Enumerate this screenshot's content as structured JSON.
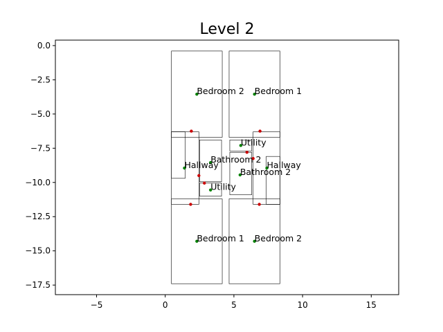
{
  "chart_data": {
    "type": "scatter",
    "title": "Level 2",
    "xlabel": "",
    "ylabel": "",
    "xlim": [
      -8,
      17
    ],
    "ylim": [
      -18.2,
      0.4
    ],
    "xticks": [
      -5,
      0,
      5,
      10,
      15
    ],
    "xtick_labels": [
      "−5",
      "0",
      "5",
      "10",
      "15"
    ],
    "yticks": [
      0,
      -2.5,
      -5,
      -7.5,
      -10,
      -12.5,
      -15,
      -17.5
    ],
    "ytick_labels": [
      "0.0",
      "−2.5",
      "−5.0",
      "−7.5",
      "−10.0",
      "−12.5",
      "−15.0",
      "−17.5"
    ],
    "grid": false,
    "colors": {
      "room_point": "#008000",
      "door_point": "#cc0000",
      "outline": "#000000"
    },
    "rooms": [
      {
        "x0": 0.45,
        "y0": -0.4,
        "x1": 4.15,
        "y1": -6.7
      },
      {
        "x0": 4.65,
        "y0": -0.4,
        "x1": 8.35,
        "y1": -6.7
      },
      {
        "x0": 0.45,
        "y0": -6.3,
        "x1": 2.45,
        "y1": -11.6
      },
      {
        "x0": 0.45,
        "y0": -6.3,
        "x1": 1.45,
        "y1": -9.7
      },
      {
        "x0": 2.5,
        "y0": -6.9,
        "x1": 4.1,
        "y1": -9.95
      },
      {
        "x0": 2.5,
        "y0": -10.05,
        "x1": 4.1,
        "y1": -11.0
      },
      {
        "x0": 4.7,
        "y0": -6.9,
        "x1": 6.3,
        "y1": -7.7
      },
      {
        "x0": 4.7,
        "y0": -7.8,
        "x1": 6.3,
        "y1": -10.9
      },
      {
        "x0": 6.4,
        "y0": -6.3,
        "x1": 8.35,
        "y1": -11.6
      },
      {
        "x0": 7.35,
        "y0": -8.1,
        "x1": 8.35,
        "y1": -11.6
      },
      {
        "x0": 0.45,
        "y0": -11.2,
        "x1": 4.15,
        "y1": -17.4
      },
      {
        "x0": 4.65,
        "y0": -11.2,
        "x1": 8.35,
        "y1": -17.4
      }
    ],
    "labels": [
      {
        "text": "Bedroom 2",
        "x": 2.3,
        "y": -3.55
      },
      {
        "text": "Bedroom 1",
        "x": 6.5,
        "y": -3.55
      },
      {
        "text": "Utility",
        "x": 5.5,
        "y": -7.3
      },
      {
        "text": "Bathroom 2",
        "x": 3.3,
        "y": -8.55
      },
      {
        "text": "Hallway",
        "x": 1.4,
        "y": -8.95
      },
      {
        "text": "Hallway",
        "x": 7.4,
        "y": -8.95
      },
      {
        "text": "Bathroom 2",
        "x": 5.45,
        "y": -9.45
      },
      {
        "text": "Utility",
        "x": 3.3,
        "y": -10.55
      },
      {
        "text": "Bedroom 1",
        "x": 2.3,
        "y": -14.3
      },
      {
        "text": "Bedroom 2",
        "x": 6.5,
        "y": -14.3
      }
    ],
    "room_points": [
      {
        "x": 2.3,
        "y": -3.55
      },
      {
        "x": 6.5,
        "y": -3.55
      },
      {
        "x": 5.5,
        "y": -7.3
      },
      {
        "x": 3.3,
        "y": -8.55
      },
      {
        "x": 1.4,
        "y": -8.95
      },
      {
        "x": 7.4,
        "y": -8.95
      },
      {
        "x": 5.45,
        "y": -9.45
      },
      {
        "x": 3.3,
        "y": -10.55
      },
      {
        "x": 2.3,
        "y": -14.3
      },
      {
        "x": 6.5,
        "y": -14.3
      }
    ],
    "door_points": [
      {
        "x": 1.9,
        "y": -6.25
      },
      {
        "x": 6.9,
        "y": -6.25
      },
      {
        "x": 5.95,
        "y": -7.8
      },
      {
        "x": 6.4,
        "y": -8.25
      },
      {
        "x": 2.45,
        "y": -9.5
      },
      {
        "x": 2.85,
        "y": -10.05
      },
      {
        "x": 1.85,
        "y": -11.6
      },
      {
        "x": 6.85,
        "y": -11.6
      }
    ]
  }
}
